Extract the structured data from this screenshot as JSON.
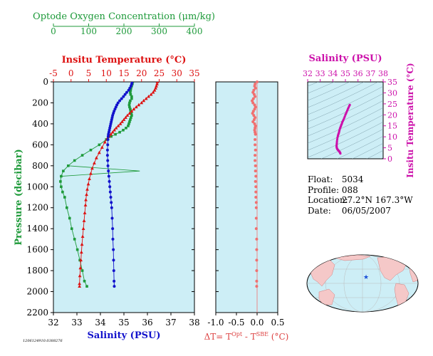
{
  "colors": {
    "panel_bg": "#cdeef6",
    "oxygen": "#1e9a3a",
    "temperature": "#dd1111",
    "salinity": "#1212cc",
    "delta_t": "#f07070",
    "ts_diagram": "#cc11aa",
    "map_star": "#1a4fd8",
    "land": "#f5c8c8",
    "ocean": "#cdeef6"
  },
  "chart_data": [
    {
      "type": "scatter",
      "name": "profile-panel",
      "ylabel": "Pressure (decibar)",
      "ylim": [
        2200,
        0
      ],
      "yticks": [
        "0",
        "200",
        "400",
        "600",
        "800",
        "1000",
        "1200",
        "1400",
        "1600",
        "1800",
        "2000",
        "2200"
      ],
      "axes": {
        "oxygen": {
          "label": "Optode Oxygen Concentration (μm/kg)",
          "lim": [
            0,
            400
          ],
          "ticks": [
            "0",
            "100",
            "200",
            "300",
            "400"
          ]
        },
        "temperature": {
          "label": "Insitu Temperature (°C)",
          "lim": [
            -5,
            35
          ],
          "ticks": [
            "-5",
            "0",
            "5",
            "10",
            "15",
            "20",
            "25",
            "30",
            "35"
          ]
        },
        "salinity": {
          "label": "Salinity (PSU)",
          "lim": [
            32,
            38
          ],
          "ticks": [
            "32",
            "33",
            "34",
            "35",
            "36",
            "37",
            "38"
          ]
        }
      },
      "series": [
        {
          "key": "oxygen",
          "marker": "square",
          "points": [
            [
              225,
              0
            ],
            [
              224,
              20
            ],
            [
              222,
              40
            ],
            [
              220,
              60
            ],
            [
              219,
              80
            ],
            [
              218,
              100
            ],
            [
              219,
              120
            ],
            [
              222,
              140
            ],
            [
              222,
              160
            ],
            [
              218,
              180
            ],
            [
              216,
              200
            ],
            [
              215,
              220
            ],
            [
              216,
              240
            ],
            [
              218,
              260
            ],
            [
              219,
              280
            ],
            [
              221,
              300
            ],
            [
              222,
              320
            ],
            [
              220,
              340
            ],
            [
              218,
              360
            ],
            [
              216,
              380
            ],
            [
              214,
              400
            ],
            [
              212,
              420
            ],
            [
              206,
              440
            ],
            [
              198,
              460
            ],
            [
              188,
              480
            ],
            [
              176,
              500
            ],
            [
              164,
              520
            ],
            [
              150,
              550
            ],
            [
              130,
              600
            ],
            [
              106,
              650
            ],
            [
              82,
              700
            ],
            [
              60,
              750
            ],
            [
              42,
              800
            ],
            [
              28,
              850
            ],
            [
              22,
              900
            ],
            [
              20,
              950
            ],
            [
              22,
              1000
            ],
            [
              26,
              1050
            ],
            [
              32,
              1100
            ],
            [
              38,
              1200
            ],
            [
              46,
              1300
            ],
            [
              52,
              1400
            ],
            [
              60,
              1500
            ],
            [
              68,
              1600
            ],
            [
              75,
              1700
            ],
            [
              82,
              1800
            ],
            [
              88,
              1900
            ],
            [
              95,
              1950
            ]
          ]
        },
        {
          "key": "oxygen_spike",
          "marker": "line",
          "points": [
            [
              42,
              800
            ],
            [
              245,
              850
            ],
            [
              22,
              900
            ]
          ]
        },
        {
          "key": "temperature",
          "marker": "triangle",
          "points": [
            [
              24.5,
              0
            ],
            [
              24.4,
              20
            ],
            [
              24.2,
              40
            ],
            [
              24.0,
              60
            ],
            [
              23.7,
              80
            ],
            [
              23.3,
              100
            ],
            [
              22.7,
              120
            ],
            [
              22.0,
              140
            ],
            [
              21.3,
              160
            ],
            [
              20.6,
              180
            ],
            [
              20.0,
              200
            ],
            [
              19.2,
              220
            ],
            [
              18.5,
              240
            ],
            [
              17.8,
              260
            ],
            [
              17.2,
              280
            ],
            [
              16.6,
              300
            ],
            [
              16.0,
              320
            ],
            [
              15.5,
              340
            ],
            [
              15.0,
              360
            ],
            [
              14.5,
              380
            ],
            [
              14.0,
              400
            ],
            [
              13.4,
              420
            ],
            [
              12.8,
              440
            ],
            [
              12.3,
              460
            ],
            [
              11.8,
              480
            ],
            [
              11.3,
              500
            ],
            [
              10.8,
              520
            ],
            [
              10.3,
              540
            ],
            [
              9.6,
              575
            ],
            [
              8.8,
              625
            ],
            [
              8.0,
              675
            ],
            [
              7.2,
              725
            ],
            [
              6.6,
              775
            ],
            [
              6.0,
              825
            ],
            [
              5.6,
              875
            ],
            [
              5.2,
              925
            ],
            [
              4.9,
              975
            ],
            [
              4.6,
              1025
            ],
            [
              4.4,
              1075
            ],
            [
              4.2,
              1125
            ],
            [
              4.1,
              1175
            ],
            [
              3.9,
              1250
            ],
            [
              3.7,
              1325
            ],
            [
              3.5,
              1400
            ],
            [
              3.3,
              1475
            ],
            [
              3.1,
              1550
            ],
            [
              2.95,
              1625
            ],
            [
              2.8,
              1700
            ],
            [
              2.65,
              1775
            ],
            [
              2.5,
              1850
            ],
            [
              2.4,
              1925
            ],
            [
              2.4,
              1950
            ]
          ]
        },
        {
          "key": "salinity",
          "marker": "circle",
          "points": [
            [
              35.35,
              0
            ],
            [
              35.33,
              20
            ],
            [
              35.3,
              40
            ],
            [
              35.25,
              60
            ],
            [
              35.2,
              80
            ],
            [
              35.12,
              100
            ],
            [
              35.05,
              120
            ],
            [
              34.98,
              140
            ],
            [
              34.9,
              160
            ],
            [
              34.82,
              180
            ],
            [
              34.75,
              200
            ],
            [
              34.7,
              220
            ],
            [
              34.66,
              240
            ],
            [
              34.62,
              260
            ],
            [
              34.58,
              280
            ],
            [
              34.55,
              300
            ],
            [
              34.52,
              320
            ],
            [
              34.5,
              340
            ],
            [
              34.48,
              360
            ],
            [
              34.46,
              380
            ],
            [
              34.44,
              400
            ],
            [
              34.42,
              420
            ],
            [
              34.4,
              440
            ],
            [
              34.38,
              460
            ],
            [
              34.36,
              480
            ],
            [
              34.34,
              500
            ],
            [
              34.33,
              520
            ],
            [
              34.32,
              550
            ],
            [
              34.31,
              600
            ],
            [
              34.3,
              650
            ],
            [
              34.3,
              700
            ],
            [
              34.31,
              750
            ],
            [
              34.32,
              800
            ],
            [
              34.34,
              850
            ],
            [
              34.36,
              900
            ],
            [
              34.38,
              950
            ],
            [
              34.4,
              1000
            ],
            [
              34.42,
              1050
            ],
            [
              34.44,
              1100
            ],
            [
              34.46,
              1150
            ],
            [
              34.48,
              1200
            ],
            [
              34.5,
              1300
            ],
            [
              34.52,
              1400
            ],
            [
              34.53,
              1500
            ],
            [
              34.55,
              1600
            ],
            [
              34.56,
              1700
            ],
            [
              34.57,
              1800
            ],
            [
              34.58,
              1900
            ],
            [
              34.59,
              1950
            ]
          ]
        }
      ]
    },
    {
      "type": "scatter",
      "name": "delta-t-panel",
      "xlabel": "ΔT= T",
      "xlabel_sup1": "Opt",
      "xlabel_mid": " - T",
      "xlabel_sup2": "SBE",
      "xlabel_end": " (°C)",
      "xlim": [
        -1.0,
        0.5
      ],
      "xticks": [
        "-1.0",
        "-0.5",
        "0.0",
        "0.5"
      ],
      "ylim": [
        2200,
        0
      ],
      "points": [
        [
          0.0,
          0
        ],
        [
          -0.05,
          20
        ],
        [
          -0.06,
          40
        ],
        [
          -0.04,
          60
        ],
        [
          -0.08,
          80
        ],
        [
          -0.1,
          100
        ],
        [
          -0.07,
          120
        ],
        [
          -0.05,
          140
        ],
        [
          -0.09,
          160
        ],
        [
          -0.12,
          180
        ],
        [
          -0.1,
          200
        ],
        [
          -0.06,
          220
        ],
        [
          -0.04,
          240
        ],
        [
          -0.06,
          260
        ],
        [
          -0.09,
          280
        ],
        [
          -0.11,
          300
        ],
        [
          -0.08,
          320
        ],
        [
          -0.05,
          340
        ],
        [
          -0.07,
          360
        ],
        [
          -0.1,
          380
        ],
        [
          -0.06,
          400
        ],
        [
          -0.04,
          420
        ],
        [
          -0.05,
          440
        ],
        [
          -0.06,
          460
        ],
        [
          -0.05,
          480
        ],
        [
          -0.04,
          500
        ],
        [
          -0.05,
          550
        ],
        [
          -0.05,
          600
        ],
        [
          -0.04,
          650
        ],
        [
          -0.05,
          700
        ],
        [
          -0.05,
          750
        ],
        [
          -0.04,
          800
        ],
        [
          -0.04,
          850
        ],
        [
          -0.03,
          900
        ],
        [
          -0.04,
          950
        ],
        [
          -0.03,
          1000
        ],
        [
          -0.03,
          1050
        ],
        [
          -0.03,
          1100
        ],
        [
          -0.02,
          1150
        ],
        [
          -0.02,
          1200
        ],
        [
          -0.02,
          1300
        ],
        [
          -0.02,
          1400
        ],
        [
          -0.01,
          1500
        ],
        [
          -0.01,
          1600
        ],
        [
          -0.01,
          1700
        ],
        [
          -0.01,
          1800
        ],
        [
          -0.01,
          1900
        ],
        [
          -0.01,
          1950
        ]
      ]
    },
    {
      "type": "scatter",
      "name": "ts-panel",
      "xlabel": "Salinity (PSU)",
      "ylabel": "Insitu Temperature (°C)",
      "xlim": [
        32,
        38
      ],
      "xticks": [
        "32",
        "33",
        "34",
        "35",
        "36",
        "37",
        "38"
      ],
      "ylim": [
        0,
        35
      ],
      "yticks": [
        "0",
        "5",
        "10",
        "15",
        "20",
        "25",
        "30",
        "35"
      ],
      "points": [
        [
          35.35,
          24.5
        ],
        [
          35.3,
          24.0
        ],
        [
          35.25,
          23.3
        ],
        [
          35.2,
          22.7
        ],
        [
          35.15,
          22.0
        ],
        [
          35.1,
          21.3
        ],
        [
          35.05,
          20.6
        ],
        [
          35.0,
          20.0
        ],
        [
          34.95,
          19.2
        ],
        [
          34.9,
          18.5
        ],
        [
          34.85,
          17.8
        ],
        [
          34.8,
          17.2
        ],
        [
          34.75,
          16.6
        ],
        [
          34.72,
          16.0
        ],
        [
          34.68,
          15.5
        ],
        [
          34.65,
          15.0
        ],
        [
          34.62,
          14.5
        ],
        [
          34.58,
          14.0
        ],
        [
          34.55,
          13.4
        ],
        [
          34.52,
          12.8
        ],
        [
          34.5,
          12.3
        ],
        [
          34.48,
          11.8
        ],
        [
          34.45,
          11.3
        ],
        [
          34.42,
          10.8
        ],
        [
          34.4,
          10.3
        ],
        [
          34.37,
          9.6
        ],
        [
          34.35,
          8.8
        ],
        [
          34.33,
          8.0
        ],
        [
          34.32,
          7.2
        ],
        [
          34.31,
          6.6
        ],
        [
          34.3,
          6.0
        ],
        [
          34.3,
          5.6
        ],
        [
          34.31,
          5.2
        ],
        [
          34.32,
          4.9
        ],
        [
          34.34,
          4.6
        ],
        [
          34.36,
          4.4
        ],
        [
          34.38,
          4.2
        ],
        [
          34.4,
          4.1
        ],
        [
          34.43,
          3.9
        ],
        [
          34.46,
          3.7
        ],
        [
          34.49,
          3.5
        ],
        [
          34.52,
          3.3
        ],
        [
          34.54,
          3.1
        ],
        [
          34.56,
          2.95
        ],
        [
          34.58,
          2.8
        ],
        [
          34.59,
          2.6
        ],
        [
          34.6,
          2.4
        ]
      ]
    }
  ],
  "info": {
    "float_label": "Float:",
    "float_value": "5034",
    "profile_label": "Profile:",
    "profile_value": "088",
    "location_label": "Location:",
    "location_value": "27.2°N  167.3°W",
    "date_label": "Date:",
    "date_value": "06/05/2007"
  },
  "footer_id": "1206124910.0388276"
}
